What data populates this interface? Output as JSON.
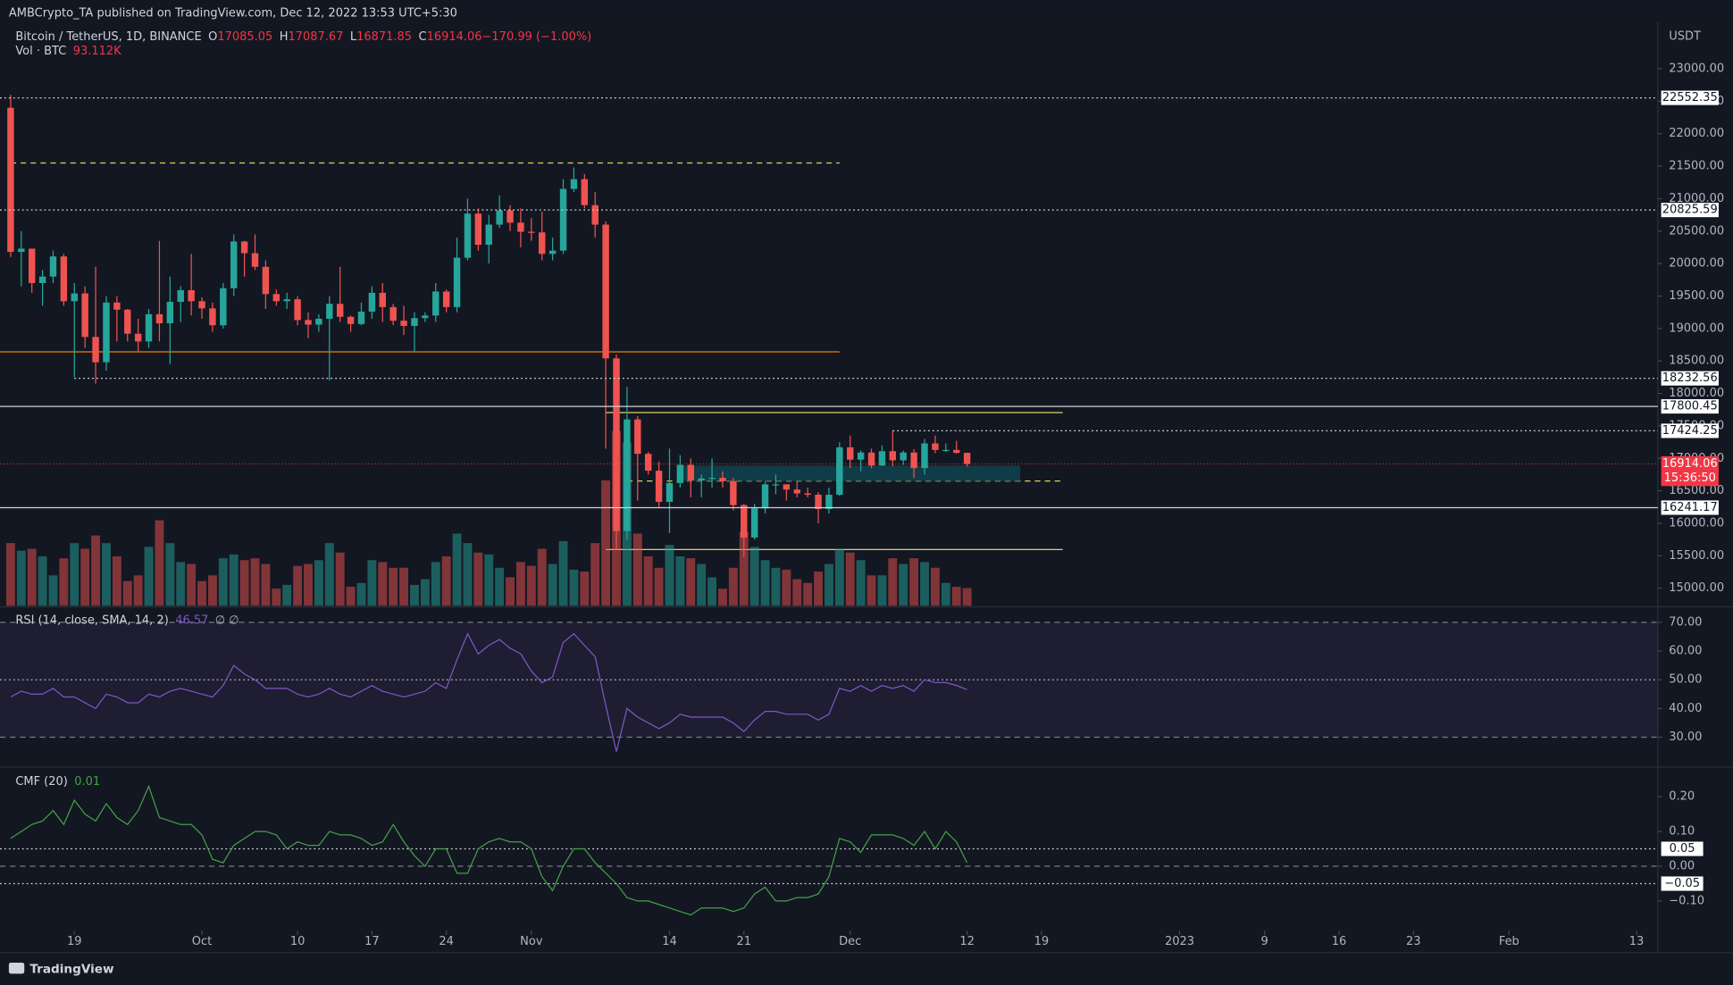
{
  "header": {
    "publisher": "AMBCrypto_TA published on TradingView.com, Dec 12, 2022 13:53 UTC+5:30",
    "brand": "TradingView"
  },
  "chart_data": [
    {
      "type": "candlestick",
      "title": "Bitcoin / TetherUS, 1D, BINANCE",
      "unit": "USDT",
      "countdown": "15:36:50",
      "readout": [
        {
          "key": "O",
          "value": "17085.05"
        },
        {
          "key": "H",
          "value": "17087.67"
        },
        {
          "key": "L",
          "value": "16871.85"
        },
        {
          "key": "C",
          "value": "16914.06"
        },
        {
          "key": "",
          "value": "−170.99 (−1.00%)"
        }
      ],
      "up_color": "#26a69a",
      "down_color": "#ef5350",
      "x": [
        "2022-09-13",
        "2022-09-14",
        "2022-09-15",
        "2022-09-16",
        "2022-09-17",
        "2022-09-18",
        "2022-09-19",
        "2022-09-20",
        "2022-09-21",
        "2022-09-22",
        "2022-09-23",
        "2022-09-24",
        "2022-09-25",
        "2022-09-26",
        "2022-09-27",
        "2022-09-28",
        "2022-09-29",
        "2022-09-30",
        "2022-10-01",
        "2022-10-02",
        "2022-10-03",
        "2022-10-04",
        "2022-10-05",
        "2022-10-06",
        "2022-10-07",
        "2022-10-08",
        "2022-10-09",
        "2022-10-10",
        "2022-10-11",
        "2022-10-12",
        "2022-10-13",
        "2022-10-14",
        "2022-10-15",
        "2022-10-16",
        "2022-10-17",
        "2022-10-18",
        "2022-10-19",
        "2022-10-20",
        "2022-10-21",
        "2022-10-22",
        "2022-10-23",
        "2022-10-24",
        "2022-10-25",
        "2022-10-26",
        "2022-10-27",
        "2022-10-28",
        "2022-10-29",
        "2022-10-30",
        "2022-10-31",
        "2022-11-01",
        "2022-11-02",
        "2022-11-03",
        "2022-11-04",
        "2022-11-05",
        "2022-11-06",
        "2022-11-07",
        "2022-11-08",
        "2022-11-09",
        "2022-11-10",
        "2022-11-11",
        "2022-11-12",
        "2022-11-13",
        "2022-11-14",
        "2022-11-15",
        "2022-11-16",
        "2022-11-17",
        "2022-11-18",
        "2022-11-19",
        "2022-11-20",
        "2022-11-21",
        "2022-11-22",
        "2022-11-23",
        "2022-11-24",
        "2022-11-25",
        "2022-11-26",
        "2022-11-27",
        "2022-11-28",
        "2022-11-29",
        "2022-11-30",
        "2022-12-01",
        "2022-12-02",
        "2022-12-03",
        "2022-12-04",
        "2022-12-05",
        "2022-12-06",
        "2022-12-07",
        "2022-12-08",
        "2022-12-09",
        "2022-12-10",
        "2022-12-11",
        "2022-12-12"
      ],
      "open": [
        22400,
        20180,
        20230,
        19700,
        19800,
        20110,
        19420,
        19540,
        18870,
        18480,
        19400,
        19290,
        18920,
        18800,
        19220,
        19080,
        19410,
        19590,
        19420,
        19310,
        19050,
        19620,
        20340,
        20160,
        19950,
        19530,
        19420,
        19450,
        19130,
        19060,
        19150,
        19380,
        19180,
        19070,
        19260,
        19550,
        19330,
        19120,
        19040,
        19160,
        19200,
        19570,
        19330,
        20090,
        20770,
        20290,
        20600,
        20820,
        20630,
        20490,
        20480,
        20150,
        20200,
        21150,
        21300,
        20900,
        20600,
        18540,
        15880,
        17600,
        17070,
        16810,
        16330,
        16620,
        16900,
        16660,
        16690,
        16700,
        16650,
        16280,
        15780,
        16230,
        16600,
        16600,
        16520,
        16460,
        16440,
        16220,
        16440,
        17170,
        16980,
        17090,
        16890,
        17110,
        16970,
        17090,
        16850,
        17230,
        17130,
        17130,
        17085.05
      ],
      "high": [
        22600,
        20500,
        20200,
        19900,
        20200,
        20150,
        19700,
        19650,
        19950,
        19500,
        19500,
        19300,
        19150,
        19300,
        20350,
        19800,
        19650,
        20150,
        19480,
        19400,
        19700,
        20450,
        20350,
        20450,
        20050,
        19600,
        19550,
        19500,
        19250,
        19220,
        19500,
        19950,
        19200,
        19400,
        19650,
        19700,
        19380,
        19350,
        19250,
        19250,
        19700,
        19600,
        20400,
        21000,
        20850,
        20750,
        21050,
        20900,
        20850,
        20700,
        20800,
        20400,
        21300,
        21480,
        21380,
        21100,
        20650,
        18600,
        18100,
        17650,
        17100,
        16950,
        17150,
        17050,
        17000,
        16750,
        17000,
        16800,
        16700,
        16300,
        16300,
        16650,
        16750,
        16600,
        16650,
        16550,
        16480,
        16550,
        17250,
        17350,
        17120,
        17150,
        17200,
        17420,
        17120,
        17140,
        17300,
        17350,
        17230,
        17270,
        17087.67
      ],
      "low": [
        20100,
        19650,
        19550,
        19350,
        19700,
        19350,
        18250,
        18700,
        18150,
        18350,
        18800,
        18800,
        18650,
        18700,
        18800,
        18450,
        19100,
        19200,
        19150,
        18950,
        19000,
        19500,
        19800,
        19900,
        19300,
        19350,
        19300,
        19050,
        18850,
        18950,
        18200,
        19100,
        18950,
        19050,
        19150,
        19100,
        19050,
        18900,
        18650,
        19100,
        19100,
        19250,
        19250,
        20050,
        20200,
        20000,
        20550,
        20500,
        20250,
        20350,
        20050,
        20050,
        20150,
        21100,
        20850,
        20400,
        17150,
        15600,
        15750,
        16350,
        16750,
        16250,
        15850,
        16550,
        16400,
        16400,
        16550,
        16550,
        16200,
        15480,
        15750,
        16150,
        16450,
        16350,
        16400,
        16400,
        16000,
        16150,
        16420,
        16850,
        16800,
        16850,
        16880,
        16880,
        16900,
        16700,
        16750,
        17080,
        17100,
        17070,
        16871.85
      ],
      "close": [
        20180,
        20230,
        19700,
        19800,
        20110,
        19420,
        19540,
        18870,
        18480,
        19400,
        19290,
        18920,
        18800,
        19220,
        19080,
        19410,
        19590,
        19420,
        19310,
        19050,
        19620,
        20340,
        20160,
        19950,
        19530,
        19420,
        19450,
        19130,
        19060,
        19150,
        19380,
        19180,
        19070,
        19260,
        19550,
        19330,
        19120,
        19040,
        19160,
        19200,
        19570,
        19330,
        20090,
        20770,
        20290,
        20600,
        20820,
        20630,
        20490,
        20480,
        20150,
        20200,
        21150,
        21300,
        20900,
        20600,
        18540,
        15880,
        17600,
        17070,
        16810,
        16330,
        16620,
        16900,
        16660,
        16690,
        16700,
        16650,
        16280,
        15780,
        16230,
        16600,
        16600,
        16520,
        16460,
        16440,
        16220,
        16440,
        17170,
        16980,
        17090,
        16890,
        17110,
        16970,
        17090,
        16850,
        17230,
        17130,
        17130,
        17085.05,
        16914.06
      ],
      "volume": {
        "title": "Vol · BTC",
        "last_label": "93.112K",
        "ylim": [
          0,
          1600000
        ],
        "values": [
          330000,
          290000,
          300000,
          260000,
          160000,
          250000,
          330000,
          300000,
          370000,
          330000,
          260000,
          130000,
          160000,
          310000,
          450000,
          330000,
          230000,
          220000,
          130000,
          160000,
          250000,
          270000,
          240000,
          250000,
          220000,
          90000,
          110000,
          210000,
          220000,
          240000,
          330000,
          280000,
          100000,
          120000,
          240000,
          230000,
          200000,
          200000,
          110000,
          140000,
          230000,
          260000,
          380000,
          330000,
          280000,
          270000,
          200000,
          150000,
          230000,
          210000,
          300000,
          220000,
          340000,
          190000,
          180000,
          330000,
          660000,
          920000,
          860000,
          380000,
          260000,
          200000,
          320000,
          260000,
          250000,
          220000,
          150000,
          90000,
          200000,
          390000,
          310000,
          240000,
          200000,
          190000,
          140000,
          120000,
          180000,
          220000,
          300000,
          280000,
          240000,
          160000,
          160000,
          250000,
          220000,
          250000,
          230000,
          200000,
          120000,
          100000,
          93112
        ]
      },
      "xlim": [
        "2022-09-12",
        "2023-02-15"
      ],
      "xticks": [
        {
          "value": "2022-09-19",
          "label": "19"
        },
        {
          "value": "2022-10-01",
          "label": "Oct"
        },
        {
          "value": "2022-10-10",
          "label": "10"
        },
        {
          "value": "2022-10-17",
          "label": "17"
        },
        {
          "value": "2022-10-24",
          "label": "24"
        },
        {
          "value": "2022-11-01",
          "label": "Nov"
        },
        {
          "value": "2022-11-14",
          "label": "14"
        },
        {
          "value": "2022-11-21",
          "label": "21"
        },
        {
          "value": "2022-12-01",
          "label": "Dec"
        },
        {
          "value": "2022-12-12",
          "label": "12"
        },
        {
          "value": "2022-12-19",
          "label": "19"
        },
        {
          "value": "2023-01-01",
          "label": "2023"
        },
        {
          "value": "2023-01-09",
          "label": "9"
        },
        {
          "value": "2023-01-16",
          "label": "16"
        },
        {
          "value": "2023-01-23",
          "label": "23"
        },
        {
          "value": "2023-02-01",
          "label": "Feb"
        },
        {
          "value": "2023-02-13",
          "label": "13"
        }
      ],
      "ylim": [
        14730,
        23715
      ],
      "yticks": [
        {
          "value": 23000,
          "label": "23000.00"
        },
        {
          "value": 22500,
          "label": "22500.00"
        },
        {
          "value": 22000,
          "label": "22000.00"
        },
        {
          "value": 21500,
          "label": "21500.00"
        },
        {
          "value": 21000,
          "label": "21000.00"
        },
        {
          "value": 20500,
          "label": "20500.00"
        },
        {
          "value": 20000,
          "label": "20000.00"
        },
        {
          "value": 19500,
          "label": "19500.00"
        },
        {
          "value": 19000,
          "label": "19000.00"
        },
        {
          "value": 18500,
          "label": "18500.00"
        },
        {
          "value": 18000,
          "label": "18000.00"
        },
        {
          "value": 17500,
          "label": "17500.00"
        },
        {
          "value": 17000,
          "label": "17000.00"
        },
        {
          "value": 16500,
          "label": "16500.00"
        },
        {
          "value": 16000,
          "label": "16000.00"
        },
        {
          "value": 15500,
          "label": "15500.00"
        },
        {
          "value": 15000,
          "label": "15000.00"
        }
      ],
      "levels": [
        {
          "value": 22552.35,
          "style": "dotted"
        },
        {
          "value": 20825.59,
          "style": "dotted"
        },
        {
          "value": 18232.56,
          "style": "dotted",
          "from": "2022-09-19"
        },
        {
          "value": 17800.45,
          "style": "solid"
        },
        {
          "value": 17424.25,
          "style": "dotted",
          "from": "2022-12-05"
        },
        {
          "value": 16241.17,
          "style": "solid"
        }
      ],
      "drawings": [
        {
          "kind": "hline",
          "value": 21550,
          "color": "#d9d55b",
          "style": "dashed",
          "from": "2022-09-13",
          "to": "2022-11-30"
        },
        {
          "kind": "hline",
          "value": 18640,
          "color": "#f57c00",
          "style": "solid",
          "from": "2022-09-12",
          "to": "2022-11-30"
        },
        {
          "kind": "hline",
          "value": 17706,
          "color": "#d9d55b",
          "style": "solid",
          "from": "2022-11-08",
          "to": "2022-12-21"
        },
        {
          "kind": "hline",
          "value": 15596,
          "color": "#d9d55b",
          "style": "solid",
          "from": "2022-11-08",
          "to": "2022-12-21"
        },
        {
          "kind": "hline",
          "value": 16651,
          "color": "#d9d55b",
          "style": "dashed",
          "from": "2022-11-10",
          "to": "2022-12-21"
        },
        {
          "kind": "box",
          "top": 16889,
          "bottom": 16651,
          "color": "#0f3c46",
          "from": "2022-11-15",
          "to": "2022-12-17"
        }
      ]
    },
    {
      "type": "line",
      "title": "RSI (14, close, SMA, 14, 2)",
      "extra": "∅ ∅",
      "color": "#7e57c2",
      "band": [
        30,
        70
      ],
      "band_color": "#7e57c2",
      "mid": 50,
      "values": [
        44,
        46,
        45,
        45,
        47,
        44,
        44,
        42,
        40,
        45,
        44,
        42,
        42,
        45,
        44,
        46,
        47,
        46,
        45,
        44,
        48,
        55,
        52,
        50,
        47,
        47,
        47,
        45,
        44,
        45,
        47,
        45,
        44,
        46,
        48,
        46,
        45,
        44,
        45,
        46,
        49,
        47,
        57,
        66,
        59,
        62,
        64,
        61,
        59,
        53,
        49,
        51,
        63,
        66,
        62,
        58,
        41,
        25,
        40,
        37,
        35,
        33,
        35,
        38,
        37,
        37,
        37,
        37,
        35,
        32,
        36,
        39,
        39,
        38,
        38,
        38,
        36,
        38,
        47,
        46,
        48,
        46,
        48,
        47,
        48,
        46,
        50,
        49,
        49,
        48,
        46.57
      ],
      "ylim": [
        20,
        75
      ],
      "yticks": [
        {
          "value": 70,
          "label": "70.00"
        },
        {
          "value": 60,
          "label": "60.00"
        },
        {
          "value": 50,
          "label": "50.00"
        },
        {
          "value": 40,
          "label": "40.00"
        },
        {
          "value": 30,
          "label": "30.00"
        }
      ]
    },
    {
      "type": "line",
      "title": "CMF (20)",
      "color": "#43a047",
      "values": [
        0.08,
        0.1,
        0.12,
        0.13,
        0.16,
        0.12,
        0.19,
        0.15,
        0.13,
        0.18,
        0.14,
        0.12,
        0.16,
        0.23,
        0.14,
        0.13,
        0.12,
        0.12,
        0.09,
        0.02,
        0.01,
        0.06,
        0.08,
        0.1,
        0.1,
        0.09,
        0.05,
        0.07,
        0.06,
        0.06,
        0.1,
        0.09,
        0.09,
        0.08,
        0.06,
        0.07,
        0.12,
        0.07,
        0.03,
        0.0,
        0.05,
        0.05,
        -0.02,
        -0.02,
        0.05,
        0.07,
        0.08,
        0.07,
        0.07,
        0.05,
        -0.03,
        -0.07,
        0.0,
        0.05,
        0.05,
        0.01,
        -0.02,
        -0.05,
        -0.09,
        -0.1,
        -0.1,
        -0.11,
        -0.12,
        -0.13,
        -0.14,
        -0.12,
        -0.12,
        -0.12,
        -0.13,
        -0.12,
        -0.08,
        -0.06,
        -0.1,
        -0.1,
        -0.09,
        -0.09,
        -0.08,
        -0.03,
        0.08,
        0.07,
        0.04,
        0.09,
        0.09,
        0.09,
        0.08,
        0.06,
        0.1,
        0.05,
        0.1,
        0.07,
        0.01
      ],
      "ylim": [
        -0.185,
        0.282
      ],
      "yticks": [
        {
          "value": 0.2,
          "label": "0.20"
        },
        {
          "value": 0.1,
          "label": "0.10"
        },
        {
          "value": 0,
          "label": "0.00"
        },
        {
          "value": -0.1,
          "label": "−0.10"
        }
      ],
      "levels": [
        {
          "value": 0.05,
          "label": "0.05"
        },
        {
          "value": -0.05,
          "label": "−0.05"
        }
      ]
    }
  ]
}
